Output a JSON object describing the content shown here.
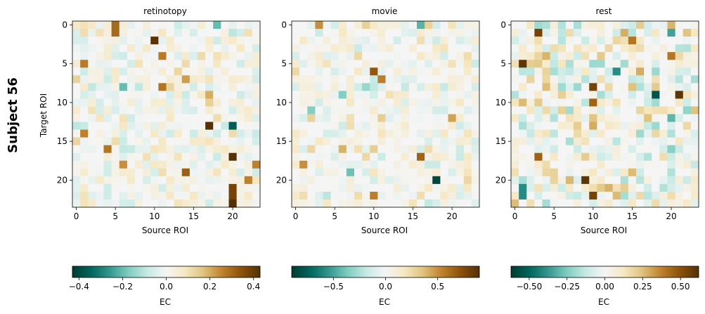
{
  "figure": {
    "subject_label": "Subject 56",
    "y_axis_label": "Target ROI",
    "colormap": "BrBG_r",
    "colormap_stops": [
      "#003c30",
      "#01665e",
      "#35978f",
      "#80cdc1",
      "#c7eae5",
      "#f5f5f5",
      "#f6e8c3",
      "#dfc27d",
      "#bf812d",
      "#8c510a",
      "#543005"
    ]
  },
  "chart_data": [
    {
      "type": "heatmap",
      "title": "retinotopy",
      "xlabel": "Source ROI",
      "ylabel": "Target ROI",
      "n_rows": 24,
      "n_cols": 24,
      "x_ticks": [
        0,
        5,
        10,
        15,
        20
      ],
      "y_ticks": [
        0,
        5,
        10,
        15,
        20
      ],
      "vmin": -0.43,
      "vmax": 0.43,
      "colorbar": {
        "label": "EC",
        "ticks": [
          -0.4,
          -0.2,
          0.0,
          0.2,
          0.4
        ],
        "tick_labels": [
          "−0.4",
          "−0.2",
          "0.0",
          "0.2",
          "0.4"
        ]
      },
      "seed": 56101,
      "spread": 0.1,
      "peaks": [
        [
          0,
          5,
          0.3
        ],
        [
          1,
          5,
          0.3
        ],
        [
          2,
          10,
          0.42
        ],
        [
          4,
          11,
          0.27
        ],
        [
          5,
          1,
          0.27
        ],
        [
          8,
          11,
          0.28
        ],
        [
          7,
          14,
          0.22
        ],
        [
          9,
          17,
          0.2
        ],
        [
          13,
          17,
          0.43
        ],
        [
          13,
          20,
          -0.36
        ],
        [
          17,
          20,
          0.43
        ],
        [
          21,
          20,
          0.38
        ],
        [
          22,
          20,
          0.38
        ],
        [
          23,
          20,
          0.43
        ],
        [
          19,
          14,
          0.32
        ],
        [
          16,
          4,
          0.28
        ],
        [
          14,
          1,
          0.26
        ],
        [
          18,
          6,
          0.24
        ],
        [
          20,
          22,
          0.26
        ],
        [
          18,
          23,
          0.26
        ],
        [
          8,
          6,
          -0.2
        ],
        [
          0,
          18,
          -0.2
        ]
      ]
    },
    {
      "type": "heatmap",
      "title": "movie",
      "xlabel": "Source ROI",
      "ylabel": "",
      "n_rows": 24,
      "n_cols": 24,
      "x_ticks": [
        0,
        5,
        10,
        15,
        20
      ],
      "y_ticks": [
        0,
        5,
        10,
        15,
        20
      ],
      "vmin": -0.9,
      "vmax": 0.9,
      "colorbar": {
        "label": "EC",
        "ticks": [
          -0.5,
          0.0,
          0.5
        ],
        "tick_labels": [
          "−0.5",
          "0.0",
          "0.5"
        ]
      },
      "seed": 56202,
      "spread": 0.2,
      "peaks": [
        [
          0,
          3,
          0.5
        ],
        [
          0,
          16,
          -0.45
        ],
        [
          6,
          10,
          0.7
        ],
        [
          7,
          11,
          0.55
        ],
        [
          9,
          6,
          -0.35
        ],
        [
          11,
          2,
          -0.35
        ],
        [
          12,
          11,
          0.3
        ],
        [
          16,
          10,
          0.3
        ],
        [
          17,
          16,
          0.65
        ],
        [
          18,
          1,
          0.5
        ],
        [
          19,
          7,
          -0.4
        ],
        [
          20,
          18,
          -0.85
        ],
        [
          22,
          10,
          0.55
        ],
        [
          16,
          6,
          0.4
        ],
        [
          12,
          20,
          0.45
        ],
        [
          8,
          9,
          -0.3
        ]
      ]
    },
    {
      "type": "heatmap",
      "title": "rest",
      "xlabel": "Source ROI",
      "ylabel": "",
      "n_rows": 24,
      "n_cols": 24,
      "x_ticks": [
        0,
        5,
        10,
        15,
        20
      ],
      "y_ticks": [
        0,
        5,
        10,
        15,
        20
      ],
      "vmin": -0.62,
      "vmax": 0.62,
      "colorbar": {
        "label": "EC",
        "ticks": [
          -0.5,
          -0.25,
          0.0,
          0.25,
          0.5
        ],
        "tick_labels": [
          "−0.50",
          "−0.25",
          "0.00",
          "0.25",
          "0.50"
        ]
      },
      "seed": 56303,
      "spread": 0.22,
      "peaks": [
        [
          1,
          3,
          0.55
        ],
        [
          5,
          1,
          0.6
        ],
        [
          8,
          10,
          0.55
        ],
        [
          10,
          10,
          0.45
        ],
        [
          9,
          18,
          -0.55
        ],
        [
          9,
          21,
          0.6
        ],
        [
          6,
          13,
          -0.4
        ],
        [
          20,
          9,
          0.6
        ],
        [
          22,
          10,
          0.55
        ],
        [
          21,
          1,
          -0.4
        ],
        [
          22,
          1,
          -0.4
        ],
        [
          2,
          15,
          0.4
        ],
        [
          1,
          20,
          -0.35
        ],
        [
          17,
          3,
          0.45
        ],
        [
          4,
          20,
          0.4
        ],
        [
          12,
          20,
          -0.3
        ]
      ]
    }
  ]
}
